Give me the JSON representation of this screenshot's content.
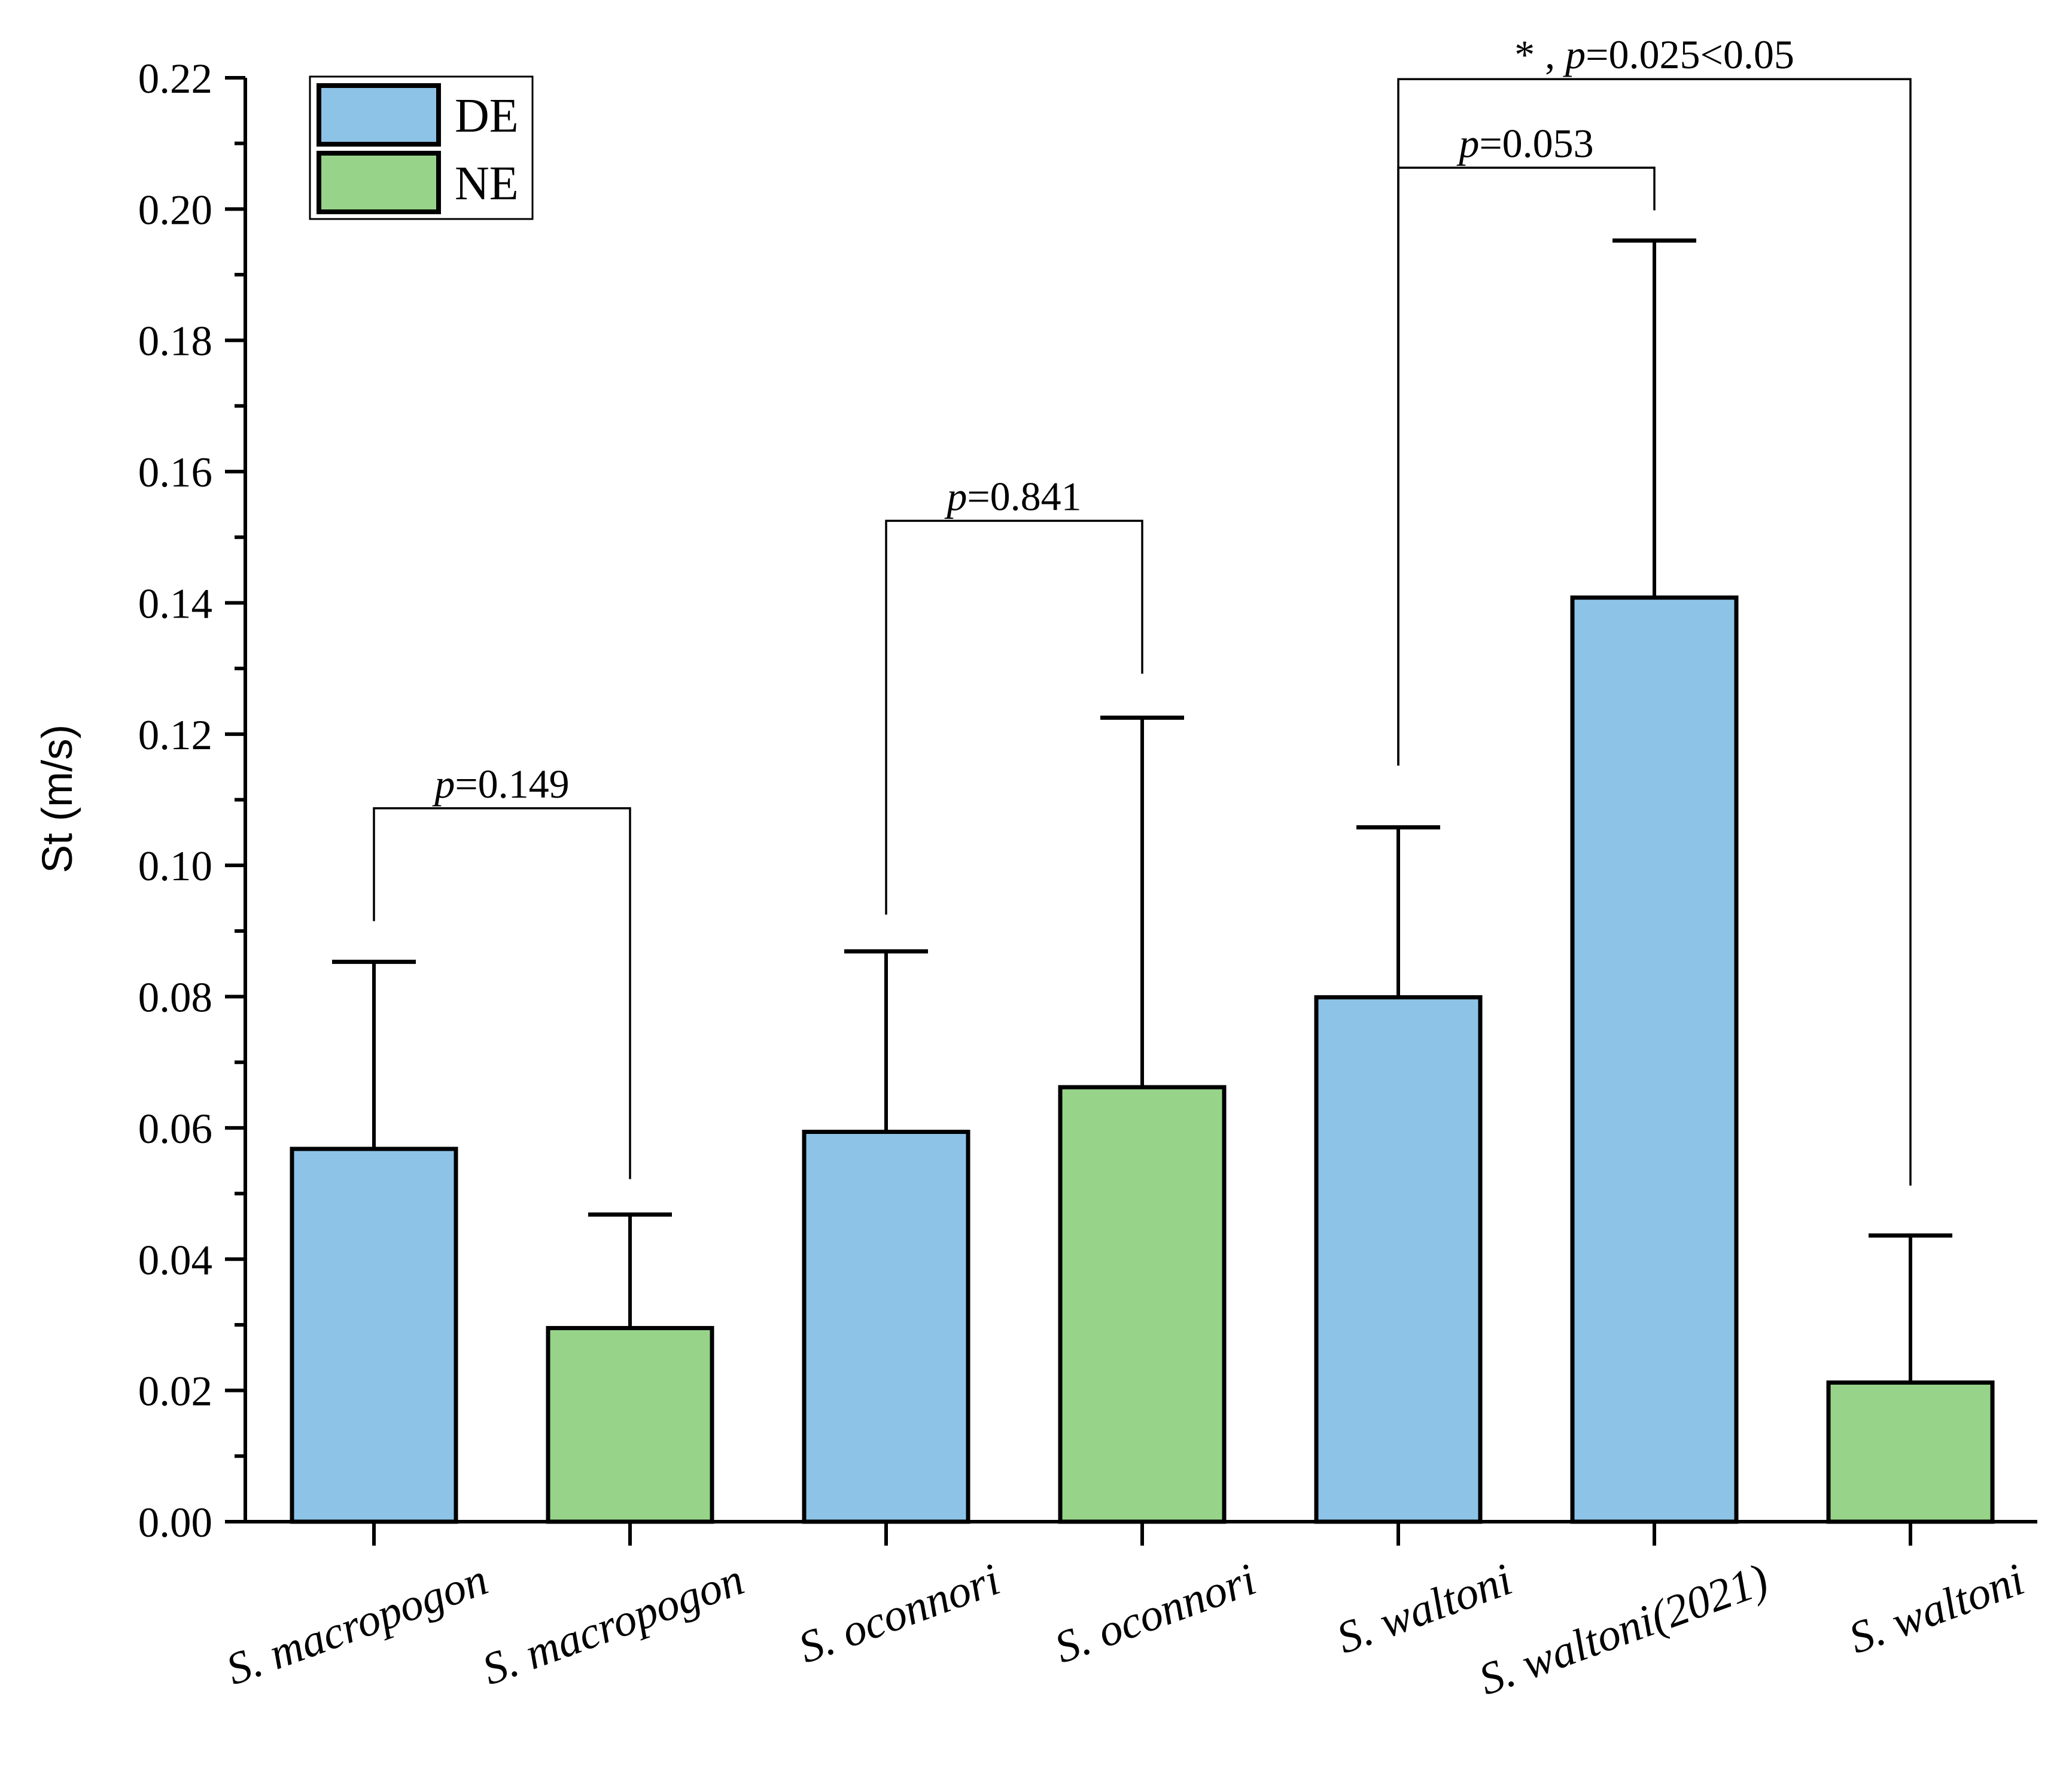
{
  "chart_data": {
    "type": "bar",
    "title": "",
    "xlabel": "",
    "ylabel": "St (m/s)",
    "ylim": [
      0,
      0.22
    ],
    "yticks": [
      "0.00",
      "0.02",
      "0.04",
      "0.06",
      "0.08",
      "0.10",
      "0.12",
      "0.14",
      "0.16",
      "0.18",
      "0.20",
      "0.22"
    ],
    "legend_position": "top-left",
    "legend": [
      {
        "name": "DE",
        "color": "#8DC3E7"
      },
      {
        "name": "NE",
        "color": "#97D48A"
      }
    ],
    "categories": [
      "S. macropogon",
      "S. macropogon",
      "S. oconnori",
      "S. oconnori",
      "S. waltoni",
      "S. waltoni(2021)",
      "S. waltoni"
    ],
    "groups": [
      "DE",
      "NE",
      "DE",
      "NE",
      "DE",
      "DE",
      "NE"
    ],
    "values": [
      0.0568,
      0.0295,
      0.0594,
      0.0662,
      0.0799,
      0.1408,
      0.0212
    ],
    "error_upper": [
      0.0853,
      0.0468,
      0.0869,
      0.1225,
      0.1058,
      0.1952,
      0.0436
    ],
    "comparisons": [
      {
        "from": 0,
        "to": 1,
        "y": 0.1087,
        "left_end": 0.0915,
        "right_end": 0.0522,
        "label_prefix": "",
        "p_symbol": "p",
        "label_value": "=0.149"
      },
      {
        "from": 2,
        "to": 3,
        "y": 0.1525,
        "left_end": 0.0925,
        "right_end": 0.1292,
        "label_prefix": "",
        "p_symbol": "p",
        "label_value": "=0.841"
      },
      {
        "from": 4,
        "to": 5,
        "y": 0.2063,
        "left_end": 0.1152,
        "right_end": 0.1998,
        "label_prefix": "",
        "p_symbol": "p",
        "label_value": "=0.053"
      },
      {
        "from": 4,
        "to": 6,
        "y": 0.2198,
        "left_end": 0.1152,
        "right_end": 0.0512,
        "label_prefix": "* , ",
        "p_symbol": "p",
        "label_value": "=0.025<0.05"
      }
    ]
  }
}
